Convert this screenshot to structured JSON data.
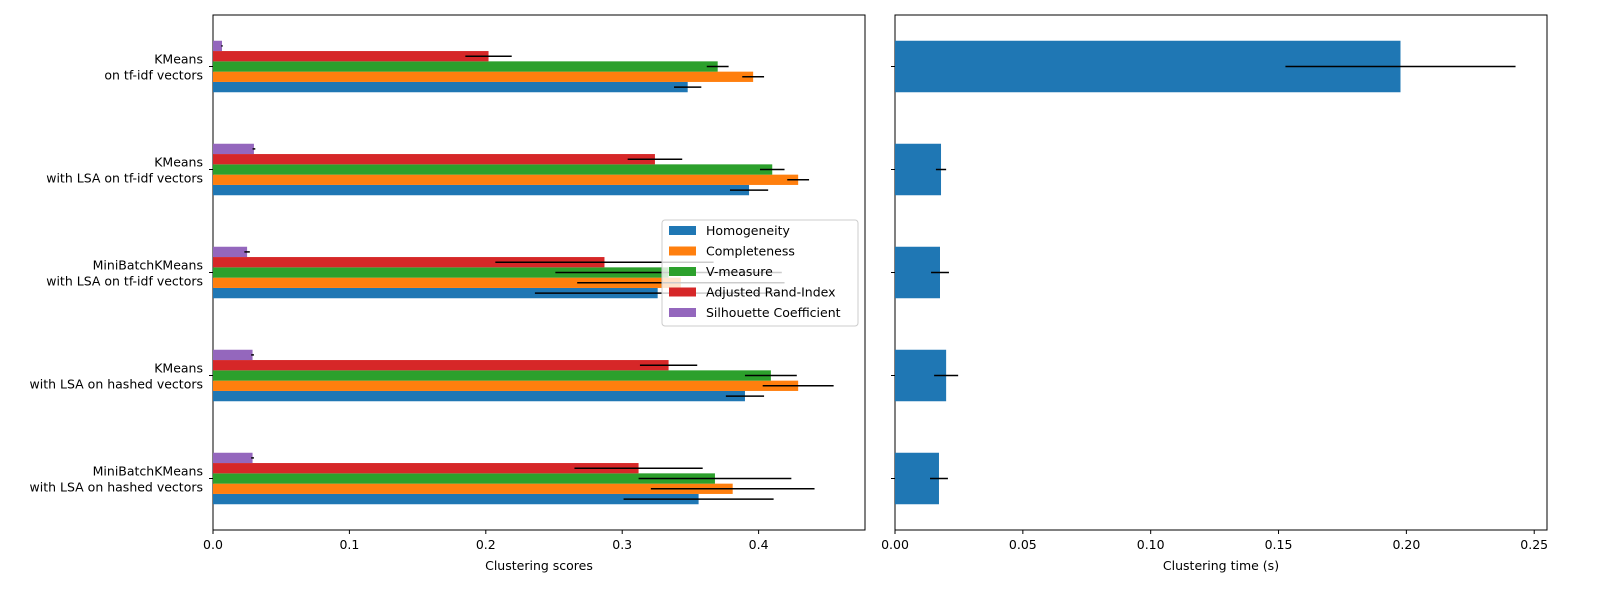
{
  "chart_data": [
    {
      "type": "bar",
      "orientation": "horizontal",
      "xlabel": "Clustering scores",
      "xlim": [
        0,
        0.478
      ],
      "xticks": [
        "0.0",
        "0.1",
        "0.2",
        "0.3",
        "0.4"
      ],
      "categories": [
        "KMeans\non tf-idf vectors",
        "KMeans\nwith LSA on tf-idf vectors",
        "MiniBatchKMeans\nwith LSA on tf-idf vectors",
        "KMeans\nwith LSA on hashed vectors",
        "MiniBatchKMeans\nwith LSA on hashed vectors"
      ],
      "legend_position": "center-right",
      "series": [
        {
          "name": "Homogeneity",
          "color": "#1f77b4",
          "values": [
            0.348,
            0.393,
            0.326,
            0.39,
            0.356
          ],
          "errors": [
            0.01,
            0.014,
            0.09,
            0.014,
            0.055
          ]
        },
        {
          "name": "Completeness",
          "color": "#ff7f0e",
          "values": [
            0.396,
            0.429,
            0.343,
            0.429,
            0.381
          ],
          "errors": [
            0.008,
            0.008,
            0.076,
            0.026,
            0.06
          ]
        },
        {
          "name": "V-measure",
          "color": "#2ca02c",
          "values": [
            0.37,
            0.41,
            0.334,
            0.409,
            0.368
          ],
          "errors": [
            0.008,
            0.009,
            0.083,
            0.019,
            0.056
          ]
        },
        {
          "name": "Adjusted Rand-Index",
          "color": "#d62728",
          "values": [
            0.202,
            0.324,
            0.287,
            0.334,
            0.312
          ],
          "errors": [
            0.017,
            0.02,
            0.08,
            0.021,
            0.047
          ]
        },
        {
          "name": "Silhouette Coefficient",
          "color": "#9467bd",
          "values": [
            0.0066,
            0.03,
            0.025,
            0.029,
            0.029
          ],
          "errors": [
            0.0005,
            0.001,
            0.002,
            0.001,
            0.001
          ]
        }
      ]
    },
    {
      "type": "bar",
      "orientation": "horizontal",
      "xlabel": "Clustering time (s)",
      "xlim": [
        0,
        0.255
      ],
      "xticks": [
        "0.00",
        "0.05",
        "0.10",
        "0.15",
        "0.20",
        "0.25"
      ],
      "color": "#1f77b4",
      "values": [
        0.1977,
        0.018,
        0.0176,
        0.02,
        0.0172
      ],
      "errors": [
        0.045,
        0.002,
        0.0035,
        0.0047,
        0.0035
      ]
    }
  ]
}
